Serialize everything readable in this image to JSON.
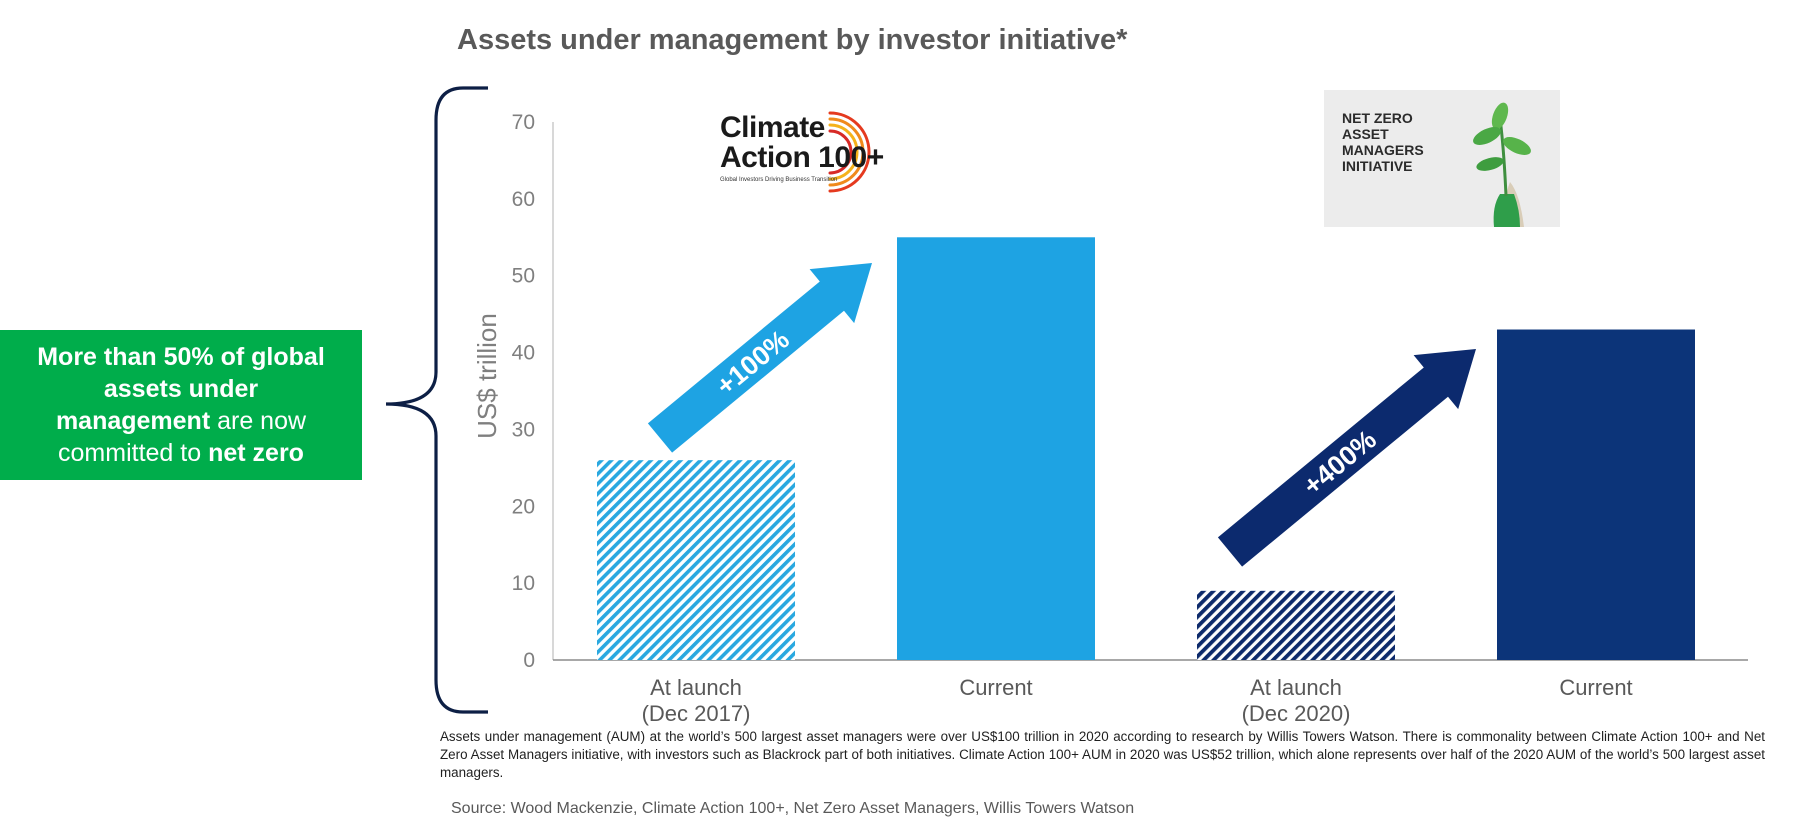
{
  "title": "Assets under management by investor initiative*",
  "callout": {
    "part1_bold": "More than 50% of global assets under management",
    "part2": " are now committed to ",
    "part3_bold": "net zero",
    "color": "#00ad4b"
  },
  "chart_data": {
    "type": "bar",
    "ylabel": "US$ trillion",
    "ylim": [
      0,
      70
    ],
    "yticks": [
      0,
      10,
      20,
      30,
      40,
      50,
      60,
      70
    ],
    "grid": false,
    "bars": [
      {
        "category_line1": "At launch",
        "category_line2": "(Dec 2017)",
        "value": 26,
        "color": "#29a8e0",
        "pattern": "hatch-light"
      },
      {
        "category_line1": "Current",
        "category_line2": "",
        "value": 55,
        "color": "#1ea3e3",
        "pattern": "solid"
      },
      {
        "category_line1": "At launch",
        "category_line2": "(Dec 2020)",
        "value": 9,
        "color": "#0d2a6b",
        "pattern": "hatch-dark"
      },
      {
        "category_line1": "Current",
        "category_line2": "",
        "value": 43,
        "color": "#0c3479",
        "pattern": "solid"
      }
    ],
    "annotations": [
      {
        "text": "+100%",
        "from_bar": 0,
        "to_bar": 1,
        "color": "#1ea3e3"
      },
      {
        "text": "+400%",
        "from_bar": 2,
        "to_bar": 3,
        "color": "#0c2a6e"
      }
    ]
  },
  "logos": {
    "climate_action": {
      "line1": "Climate",
      "line2": "Action 100+",
      "tagline": "Global Investors Driving Business Transition"
    },
    "net_zero": {
      "text": "NET ZERO ASSET MANAGERS INITIATIVE"
    }
  },
  "footnote": "Assets under management (AUM) at the world’s 500 largest asset managers were over US$100 trillion in 2020 according to research by Willis Towers Watson. There is commonality between Climate Action 100+ and Net Zero Asset Managers initiative, with investors such as Blackrock part of both initiatives. Climate Action 100+  AUM in 2020 was US$52 trillion, which alone represents over half of the 2020 AUM of the world’s 500 largest asset managers.",
  "source": "Source: Wood Mackenzie, Climate Action 100+, Net Zero Asset Managers, Willis Towers Watson"
}
